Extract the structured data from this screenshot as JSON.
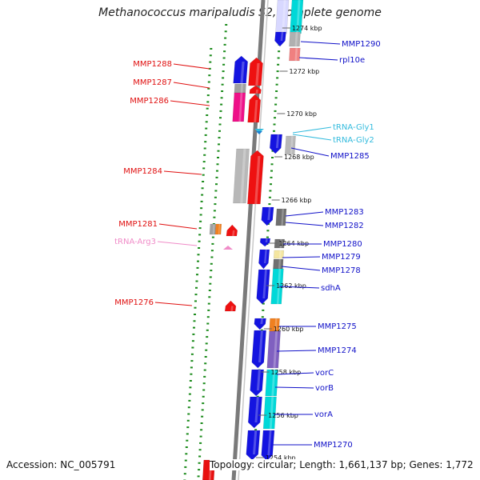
{
  "title": "Methanococcus maripaludis S2, complete genome",
  "accession": "Accession: NC_005791",
  "summary": "Topology: circular; Length: 1,661,137 bp; Genes: 1,772",
  "colors": {
    "reverse_label": "#e01010",
    "forward_label": "#1010c8",
    "trna_forward": "#33bbdd",
    "trna_reverse": "#f08cc8",
    "backbone": "#7a7a7a",
    "dots": "#1a8a1a"
  },
  "ticks": [
    "1274 kbp",
    "1272 kbp",
    "1270 kbp",
    "1268 kbp",
    "1266 kbp",
    "1264 kbp",
    "1262 kbp",
    "1260 kbp",
    "1258 kbp",
    "1256 kbp",
    "1254 kbp"
  ],
  "left_labels": [
    "MMP1288",
    "MMP1287",
    "MMP1286",
    "MMP1284",
    "MMP1281",
    "tRNA-Arg3",
    "MMP1276"
  ],
  "right_labels": [
    "MMP1290",
    "rpl10e",
    "tRNA-Gly1",
    "tRNA-Gly2",
    "MMP1285",
    "MMP1283",
    "MMP1282",
    "MMP1280",
    "MMP1279",
    "MMP1278",
    "sdhA",
    "MMP1275",
    "MMP1274",
    "vorC",
    "vorB",
    "vorA",
    "MMP1270"
  ]
}
